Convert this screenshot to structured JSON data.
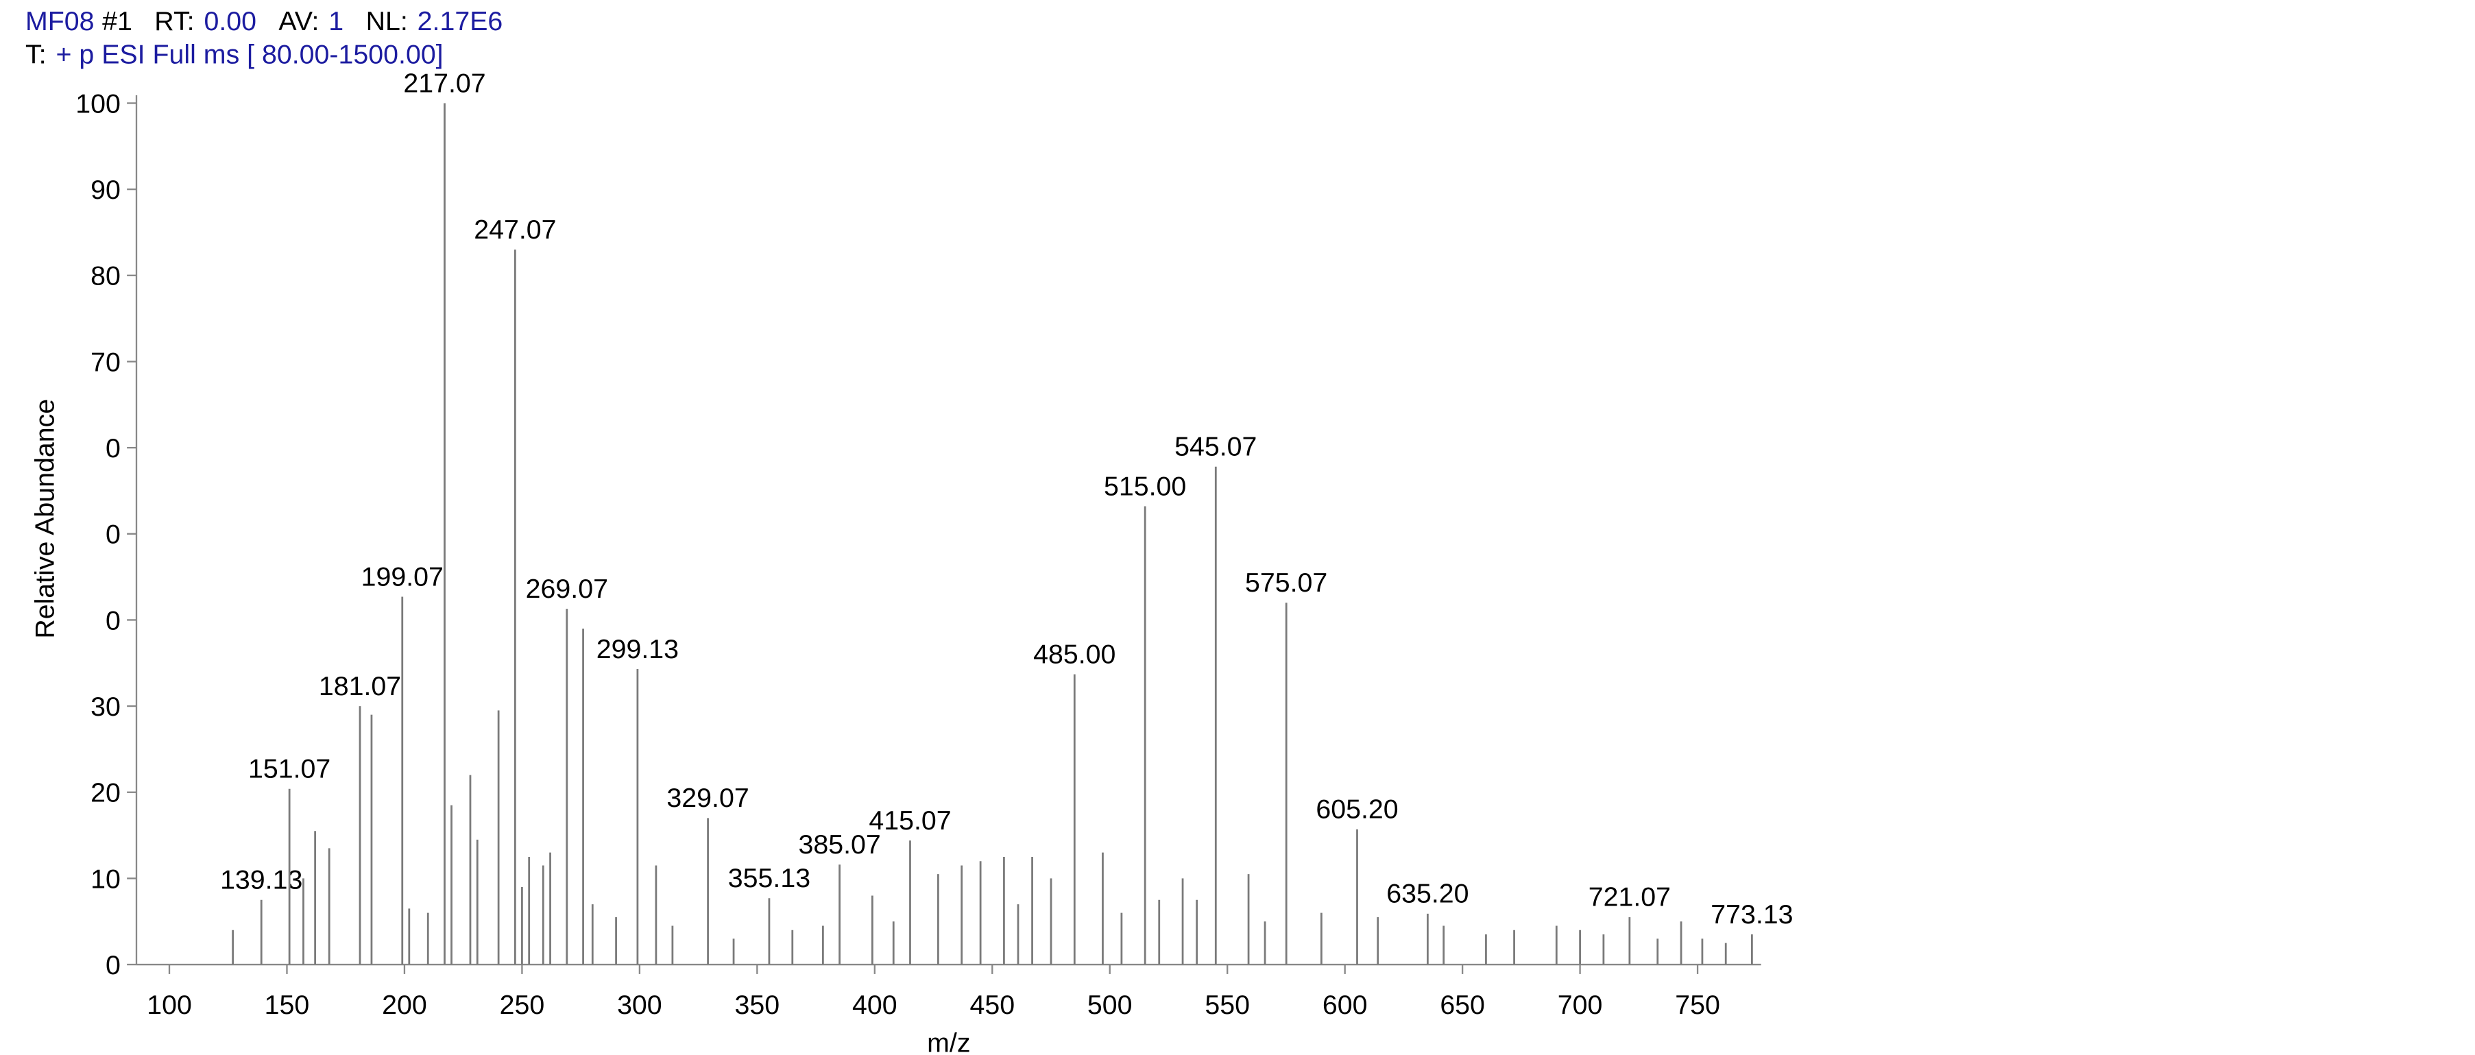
{
  "header": {
    "file": "MF08",
    "scan": "#1",
    "rt_label": "RT:",
    "rt": "0.00",
    "av_label": "AV:",
    "av": "1",
    "nl_label": "NL:",
    "nl": "2.17E6",
    "filter_label": "T:",
    "filter": "+ p ESI Full ms [ 80.00-1500.00]"
  },
  "chart_data": {
    "type": "spectrum",
    "ylabel": "Relative Abundance",
    "xlabel": "m/z",
    "color": "#7a7a7a",
    "xlim": [
      86,
      777
    ],
    "ylim": [
      0,
      100
    ],
    "xticks": [
      100,
      150,
      200,
      250,
      300,
      350,
      400,
      450,
      500,
      550,
      600,
      650,
      700,
      750
    ],
    "yticks": [
      0,
      10,
      20,
      30,
      {
        "value": 40,
        "label": "0"
      },
      {
        "value": 50,
        "label": "0"
      },
      {
        "value": 60,
        "label": "0"
      },
      70,
      80,
      90,
      100
    ],
    "x": [
      127,
      139.13,
      151.07,
      157,
      162,
      168,
      181.07,
      186,
      199.07,
      202,
      210,
      217.07,
      220,
      228,
      231,
      240,
      247.07,
      250,
      253,
      259,
      262,
      269.07,
      276,
      280,
      290,
      299.13,
      307,
      314,
      329.07,
      340,
      355.13,
      365,
      378,
      385.07,
      399,
      408,
      415.07,
      427,
      437,
      445,
      455,
      461,
      467,
      475,
      485.0,
      497,
      505,
      515.0,
      521,
      531,
      537,
      545.07,
      559,
      566,
      575.07,
      590,
      605.2,
      614,
      635.2,
      642,
      660,
      672,
      690,
      700,
      710,
      721.07,
      733,
      743,
      752,
      762,
      773.13
    ],
    "x_labels": [
      null,
      "139.13",
      "151.07",
      null,
      null,
      null,
      "181.07",
      null,
      "199.07",
      null,
      null,
      "217.07",
      null,
      null,
      null,
      null,
      "247.07",
      null,
      null,
      null,
      null,
      "269.07",
      null,
      null,
      null,
      "299.13",
      null,
      null,
      "329.07",
      null,
      "355.13",
      null,
      null,
      "385.07",
      null,
      null,
      "415.07",
      null,
      null,
      null,
      null,
      null,
      null,
      null,
      "485.00",
      null,
      null,
      "515.00",
      null,
      null,
      null,
      "545.07",
      null,
      null,
      "575.07",
      null,
      "605.20",
      null,
      "635.20",
      null,
      null,
      null,
      null,
      null,
      null,
      "721.07",
      null,
      null,
      null,
      null,
      "773.13"
    ],
    "values": [
      4,
      7.5,
      20.4,
      10,
      15.5,
      13.5,
      30,
      29,
      42.7,
      6.5,
      6,
      100,
      18.5,
      22,
      14.5,
      29.5,
      83,
      9,
      12.5,
      11.5,
      13,
      41.3,
      39,
      7,
      5.5,
      34.3,
      11.5,
      4.5,
      17,
      3,
      7.7,
      4,
      4.5,
      11.6,
      8,
      5,
      14.4,
      10.5,
      11.5,
      12,
      12.5,
      7,
      12.5,
      10,
      33.7,
      13,
      6,
      53.2,
      7.5,
      10,
      7.5,
      57.8,
      10.5,
      5,
      42,
      6,
      15.7,
      5.5,
      5.9,
      4.5,
      3.5,
      4,
      4.5,
      4,
      3.5,
      5.5,
      3,
      5,
      3,
      2.5,
      3.5
    ]
  }
}
